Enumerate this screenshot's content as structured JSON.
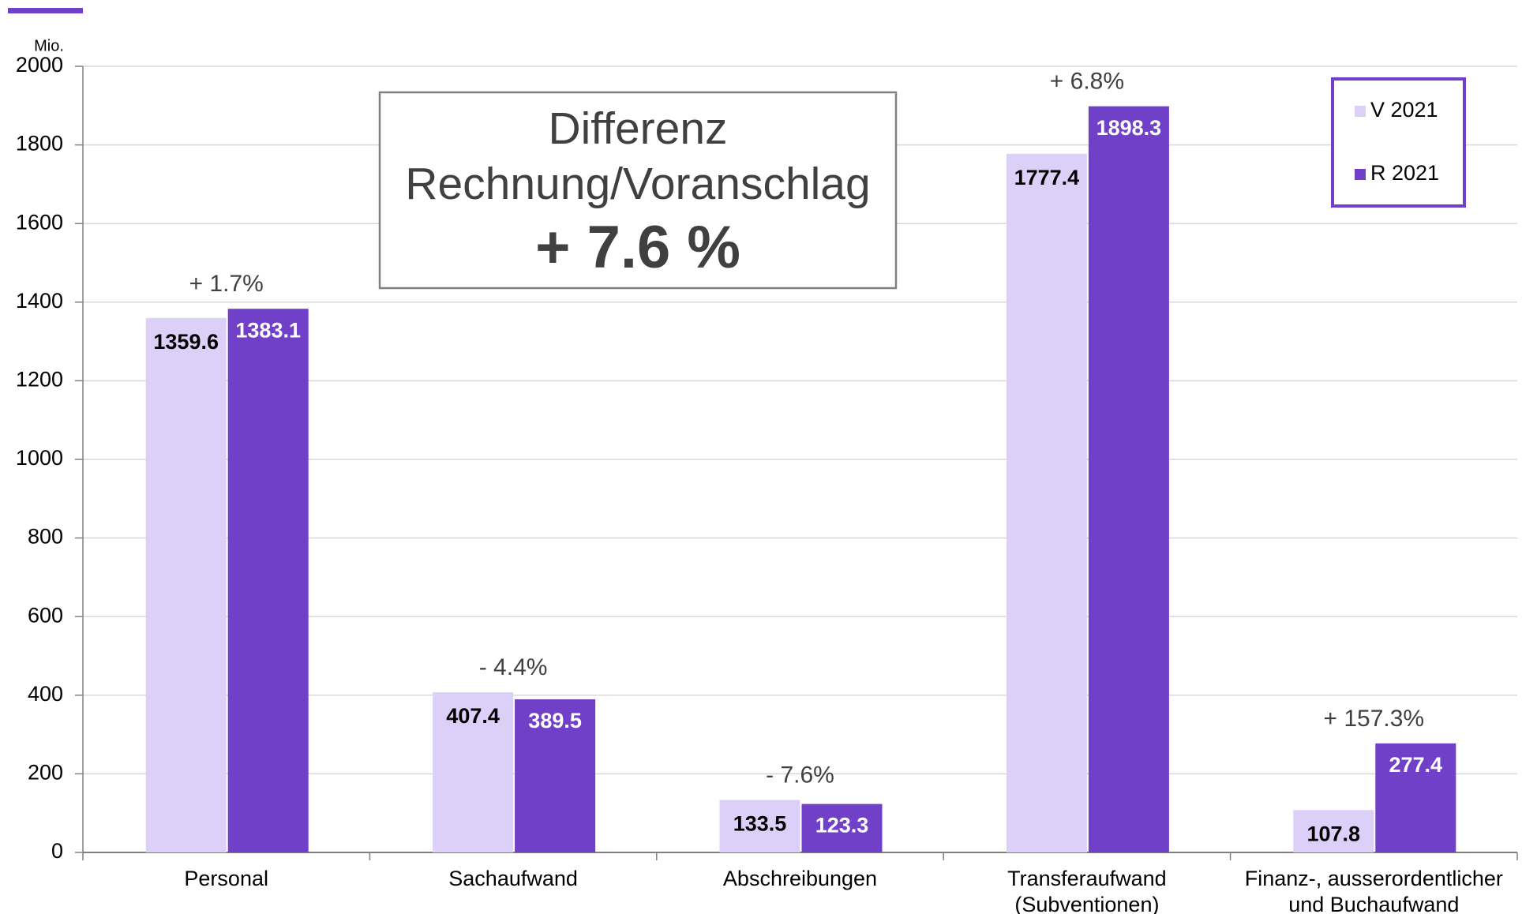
{
  "chart_data": {
    "type": "bar",
    "y_unit": "Mio.",
    "box_text": [
      "Differenz",
      "Rechnung/Voranschlag",
      "+ 7.6 %"
    ],
    "categories": [
      [
        "Personal"
      ],
      [
        "Sachaufwand"
      ],
      [
        "Abschreibungen"
      ],
      [
        "Transferaufwand",
        "(Subventionen)"
      ],
      [
        "Finanz-, ausserordentlicher",
        "und Buchaufwand"
      ]
    ],
    "changes": [
      "+ 1.7%",
      "- 4.4%",
      "- 7.6%",
      "+ 6.8%",
      "+ 157.3%"
    ],
    "series": [
      {
        "name": "V 2021",
        "color": "#dcd0f8",
        "values": [
          1359.6,
          407.4,
          133.5,
          1777.4,
          107.8
        ]
      },
      {
        "name": "R 2021",
        "color": "#7040c8",
        "values": [
          1383.1,
          389.5,
          123.3,
          1898.3,
          277.4
        ]
      }
    ],
    "ylim": [
      0,
      2000
    ],
    "yticks": [
      0,
      200,
      400,
      600,
      800,
      1000,
      1200,
      1400,
      1600,
      1800,
      2000
    ],
    "grid": true,
    "legend": "top-right"
  }
}
